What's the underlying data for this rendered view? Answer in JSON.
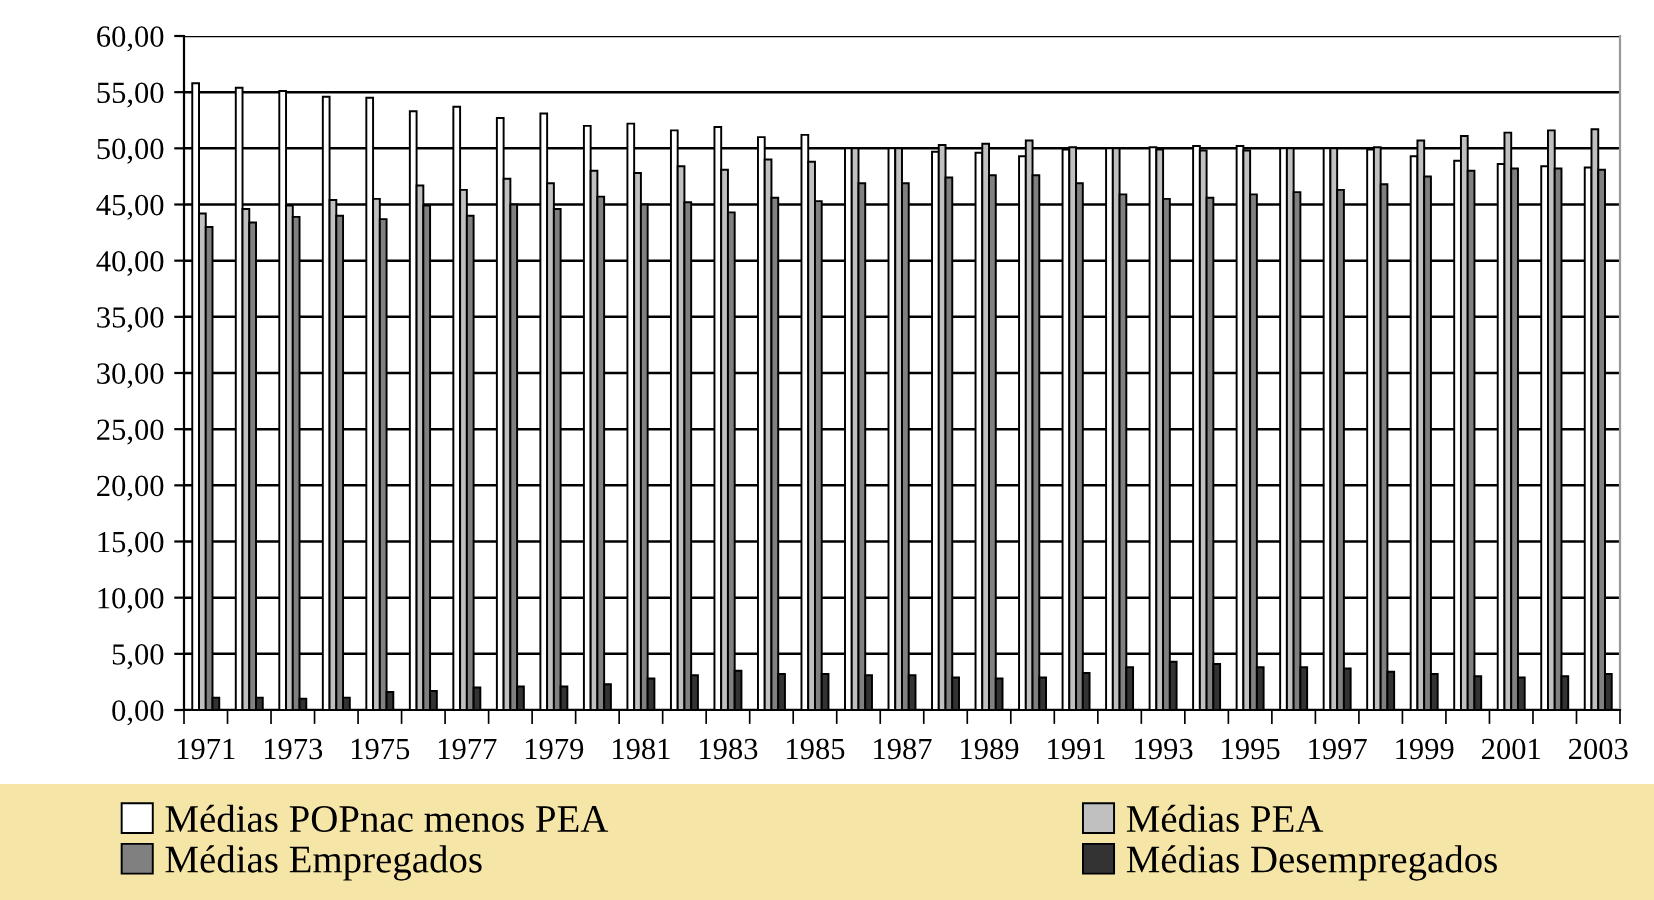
{
  "chart_data": {
    "type": "bar",
    "categories": [
      "1971",
      null,
      "1973",
      null,
      "1975",
      null,
      "1977",
      null,
      "1979",
      null,
      "1981",
      null,
      "1983",
      null,
      "1985",
      null,
      "1987",
      null,
      "1989",
      null,
      "1991",
      null,
      "1993",
      null,
      "1995",
      null,
      "1997",
      null,
      "1999",
      null,
      "2001",
      null,
      "2003"
    ],
    "series": [
      {
        "name": "Médias POPnac menos PEA",
        "color": "#ffffff",
        "values": [
          55.8,
          55.4,
          55.1,
          54.6,
          54.5,
          53.3,
          53.7,
          52.7,
          53.1,
          52.0,
          52.2,
          51.6,
          51.9,
          51.0,
          51.2,
          50.0,
          50.0,
          49.7,
          49.6,
          49.3,
          49.9,
          50.0,
          50.1,
          50.2,
          50.2,
          50.0,
          50.0,
          49.9,
          49.3,
          48.9,
          48.6,
          48.4,
          48.3
        ]
      },
      {
        "name": "Médias PEA",
        "color": "#c0c0c0",
        "values": [
          44.2,
          44.6,
          44.9,
          45.4,
          45.5,
          46.7,
          46.3,
          47.3,
          46.9,
          48.0,
          47.8,
          48.4,
          48.1,
          49.0,
          48.8,
          50.0,
          50.0,
          50.3,
          50.4,
          50.7,
          50.1,
          50.0,
          49.9,
          49.8,
          49.8,
          50.0,
          50.0,
          50.1,
          50.7,
          51.1,
          51.4,
          51.6,
          51.7
        ]
      },
      {
        "name": "Médias Empregados",
        "color": "#808080",
        "values": [
          43.0,
          43.4,
          43.9,
          44.0,
          43.7,
          44.9,
          44.0,
          45.0,
          44.6,
          45.7,
          45.0,
          45.2,
          44.3,
          45.6,
          45.3,
          46.9,
          46.9,
          47.4,
          47.6,
          47.6,
          46.9,
          45.9,
          45.5,
          45.6,
          45.9,
          46.1,
          46.3,
          46.8,
          47.5,
          48.0,
          48.2,
          48.2,
          48.1
        ]
      },
      {
        "name": "Médias Desempregados",
        "color": "#333333",
        "values": [
          1.1,
          1.1,
          1.0,
          1.1,
          1.6,
          1.7,
          2.0,
          2.1,
          2.1,
          2.3,
          2.8,
          3.1,
          3.5,
          3.2,
          3.2,
          3.1,
          3.1,
          2.9,
          2.8,
          2.9,
          3.3,
          3.8,
          4.3,
          4.1,
          3.8,
          3.8,
          3.7,
          3.4,
          3.2,
          3.0,
          2.9,
          3.0,
          3.2
        ]
      }
    ],
    "ylim": [
      0,
      60
    ],
    "yticks": [
      {
        "value": 0,
        "label": "0,00"
      },
      {
        "value": 5,
        "label": "5,00"
      },
      {
        "value": 10,
        "label": "10,00"
      },
      {
        "value": 15,
        "label": "15,00"
      },
      {
        "value": 20,
        "label": "20,00"
      },
      {
        "value": 25,
        "label": "25,00"
      },
      {
        "value": 30,
        "label": "30,00"
      },
      {
        "value": 35,
        "label": "35,00"
      },
      {
        "value": 40,
        "label": "40,00"
      },
      {
        "value": 45,
        "label": "45,00"
      },
      {
        "value": 50,
        "label": "50,00"
      },
      {
        "value": 55,
        "label": "55,00"
      },
      {
        "value": 60,
        "label": "60,00"
      }
    ],
    "grid": "y",
    "legend": "bottom"
  }
}
